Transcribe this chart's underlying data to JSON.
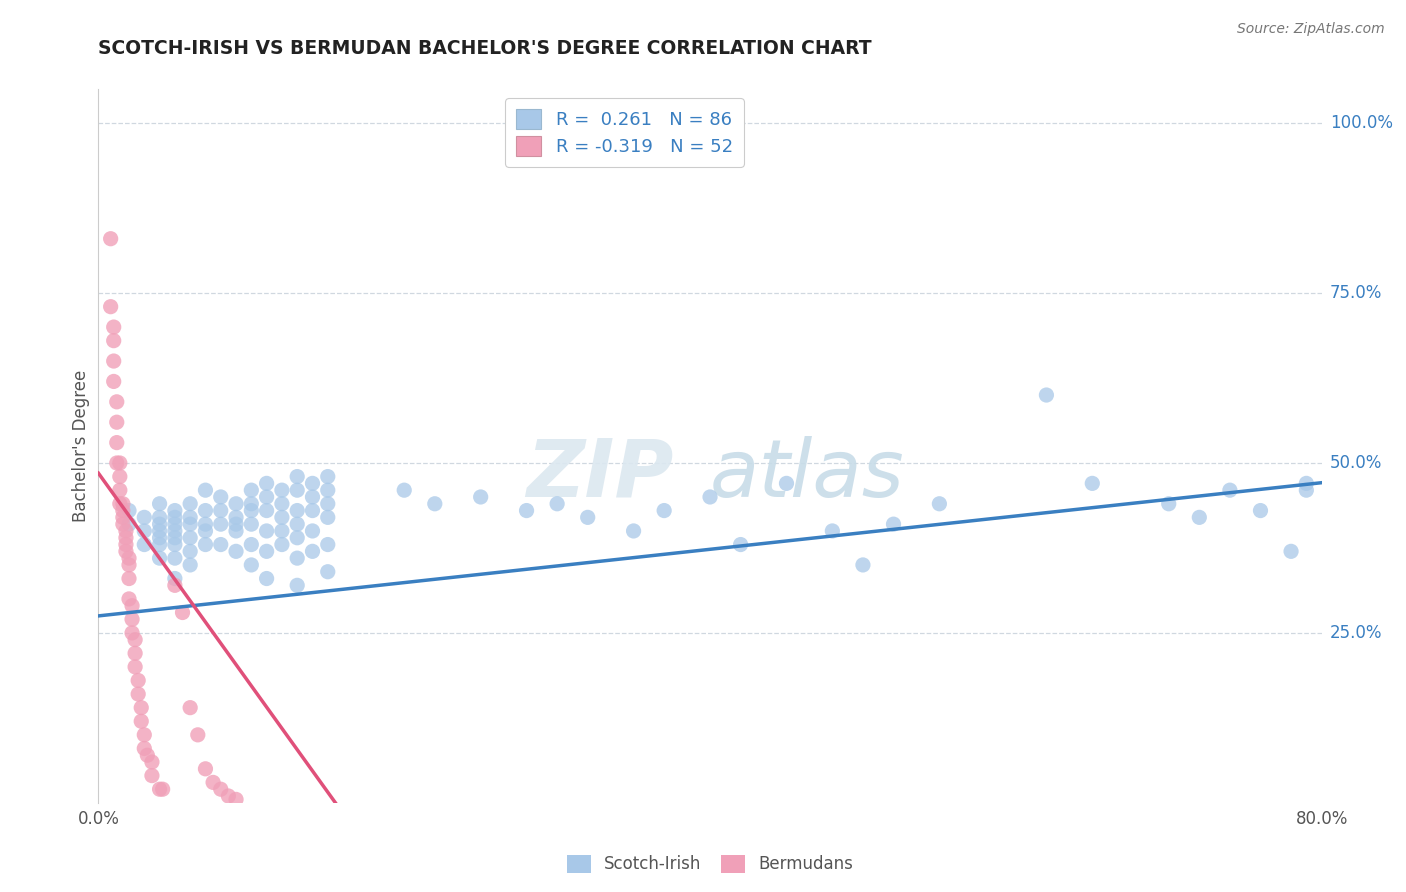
{
  "title": "SCOTCH-IRISH VS BERMUDAN BACHELOR'S DEGREE CORRELATION CHART",
  "source": "Source: ZipAtlas.com",
  "ylabel": "Bachelor's Degree",
  "legend_bottom": [
    "Scotch-Irish",
    "Bermudans"
  ],
  "blue_color": "#a8c8e8",
  "pink_color": "#f0a0b8",
  "blue_line_color": "#3a7fc1",
  "pink_line_color": "#e0507a",
  "watermark_color": "#dde8f0",
  "xlim": [
    0.0,
    0.8
  ],
  "ylim": [
    0.0,
    1.05
  ],
  "x_ticks": [
    0.0,
    0.8
  ],
  "x_tick_labels": [
    "0.0%",
    "80.0%"
  ],
  "y_ticks_right": [
    0.25,
    0.5,
    0.75,
    1.0
  ],
  "y_tick_labels_right": [
    "25.0%",
    "50.0%",
    "75.0%",
    "100.0%"
  ],
  "right_tick_color": "#3a7fc1",
  "grid_color": "#d0d8e0",
  "background_color": "#ffffff",
  "title_color": "#222222",
  "axis_label_color": "#555555",
  "source_color": "#777777",
  "legend_R_color": "#3a7fc1",
  "legend_text_color": "#333333",
  "blue_scatter_size": 120,
  "pink_scatter_size": 120,
  "blue_line_intercept": 0.275,
  "blue_line_slope_visual": 0.245,
  "pink_line_intercept": 0.485,
  "pink_line_x_end": 0.155,
  "si_points": [
    [
      0.02,
      0.43
    ],
    [
      0.02,
      0.41
    ],
    [
      0.03,
      0.42
    ],
    [
      0.03,
      0.4
    ],
    [
      0.03,
      0.38
    ],
    [
      0.04,
      0.44
    ],
    [
      0.04,
      0.42
    ],
    [
      0.04,
      0.41
    ],
    [
      0.04,
      0.4
    ],
    [
      0.04,
      0.39
    ],
    [
      0.04,
      0.38
    ],
    [
      0.04,
      0.36
    ],
    [
      0.05,
      0.43
    ],
    [
      0.05,
      0.42
    ],
    [
      0.05,
      0.41
    ],
    [
      0.05,
      0.4
    ],
    [
      0.05,
      0.39
    ],
    [
      0.05,
      0.38
    ],
    [
      0.05,
      0.36
    ],
    [
      0.05,
      0.33
    ],
    [
      0.06,
      0.44
    ],
    [
      0.06,
      0.42
    ],
    [
      0.06,
      0.41
    ],
    [
      0.06,
      0.39
    ],
    [
      0.06,
      0.37
    ],
    [
      0.06,
      0.35
    ],
    [
      0.07,
      0.46
    ],
    [
      0.07,
      0.43
    ],
    [
      0.07,
      0.41
    ],
    [
      0.07,
      0.4
    ],
    [
      0.07,
      0.38
    ],
    [
      0.08,
      0.45
    ],
    [
      0.08,
      0.43
    ],
    [
      0.08,
      0.41
    ],
    [
      0.08,
      0.38
    ],
    [
      0.09,
      0.44
    ],
    [
      0.09,
      0.42
    ],
    [
      0.09,
      0.41
    ],
    [
      0.09,
      0.4
    ],
    [
      0.09,
      0.37
    ],
    [
      0.1,
      0.46
    ],
    [
      0.1,
      0.44
    ],
    [
      0.1,
      0.43
    ],
    [
      0.1,
      0.41
    ],
    [
      0.1,
      0.38
    ],
    [
      0.1,
      0.35
    ],
    [
      0.11,
      0.47
    ],
    [
      0.11,
      0.45
    ],
    [
      0.11,
      0.43
    ],
    [
      0.11,
      0.4
    ],
    [
      0.11,
      0.37
    ],
    [
      0.11,
      0.33
    ],
    [
      0.12,
      0.46
    ],
    [
      0.12,
      0.44
    ],
    [
      0.12,
      0.42
    ],
    [
      0.12,
      0.4
    ],
    [
      0.12,
      0.38
    ],
    [
      0.13,
      0.48
    ],
    [
      0.13,
      0.46
    ],
    [
      0.13,
      0.43
    ],
    [
      0.13,
      0.41
    ],
    [
      0.13,
      0.39
    ],
    [
      0.13,
      0.36
    ],
    [
      0.13,
      0.32
    ],
    [
      0.14,
      0.47
    ],
    [
      0.14,
      0.45
    ],
    [
      0.14,
      0.43
    ],
    [
      0.14,
      0.4
    ],
    [
      0.14,
      0.37
    ],
    [
      0.15,
      0.48
    ],
    [
      0.15,
      0.46
    ],
    [
      0.15,
      0.44
    ],
    [
      0.15,
      0.42
    ],
    [
      0.15,
      0.38
    ],
    [
      0.15,
      0.34
    ],
    [
      0.2,
      0.46
    ],
    [
      0.22,
      0.44
    ],
    [
      0.25,
      0.45
    ],
    [
      0.28,
      0.43
    ],
    [
      0.3,
      0.44
    ],
    [
      0.32,
      0.42
    ],
    [
      0.35,
      0.4
    ],
    [
      0.37,
      0.43
    ],
    [
      0.4,
      0.45
    ],
    [
      0.42,
      0.38
    ],
    [
      0.45,
      0.47
    ],
    [
      0.48,
      0.4
    ],
    [
      0.5,
      0.35
    ],
    [
      0.52,
      0.41
    ],
    [
      0.55,
      0.44
    ],
    [
      0.62,
      0.6
    ],
    [
      0.65,
      0.47
    ],
    [
      0.7,
      0.44
    ],
    [
      0.72,
      0.42
    ],
    [
      0.74,
      0.46
    ],
    [
      0.76,
      0.43
    ],
    [
      0.78,
      0.37
    ],
    [
      0.79,
      0.46
    ],
    [
      0.79,
      0.47
    ]
  ],
  "bm_points": [
    [
      0.008,
      0.83
    ],
    [
      0.008,
      0.73
    ],
    [
      0.01,
      0.7
    ],
    [
      0.01,
      0.68
    ],
    [
      0.01,
      0.65
    ],
    [
      0.01,
      0.62
    ],
    [
      0.012,
      0.59
    ],
    [
      0.012,
      0.56
    ],
    [
      0.012,
      0.53
    ],
    [
      0.012,
      0.5
    ],
    [
      0.014,
      0.5
    ],
    [
      0.014,
      0.48
    ],
    [
      0.014,
      0.46
    ],
    [
      0.014,
      0.44
    ],
    [
      0.016,
      0.44
    ],
    [
      0.016,
      0.43
    ],
    [
      0.016,
      0.42
    ],
    [
      0.016,
      0.41
    ],
    [
      0.018,
      0.4
    ],
    [
      0.018,
      0.39
    ],
    [
      0.018,
      0.38
    ],
    [
      0.018,
      0.37
    ],
    [
      0.02,
      0.36
    ],
    [
      0.02,
      0.35
    ],
    [
      0.02,
      0.33
    ],
    [
      0.02,
      0.3
    ],
    [
      0.022,
      0.29
    ],
    [
      0.022,
      0.27
    ],
    [
      0.022,
      0.25
    ],
    [
      0.024,
      0.24
    ],
    [
      0.024,
      0.22
    ],
    [
      0.024,
      0.2
    ],
    [
      0.026,
      0.18
    ],
    [
      0.026,
      0.16
    ],
    [
      0.028,
      0.14
    ],
    [
      0.028,
      0.12
    ],
    [
      0.03,
      0.1
    ],
    [
      0.03,
      0.08
    ],
    [
      0.032,
      0.07
    ],
    [
      0.035,
      0.06
    ],
    [
      0.035,
      0.04
    ],
    [
      0.04,
      0.02
    ],
    [
      0.042,
      0.02
    ],
    [
      0.05,
      0.32
    ],
    [
      0.055,
      0.28
    ],
    [
      0.06,
      0.14
    ],
    [
      0.065,
      0.1
    ],
    [
      0.07,
      0.05
    ],
    [
      0.075,
      0.03
    ],
    [
      0.08,
      0.02
    ],
    [
      0.085,
      0.01
    ],
    [
      0.09,
      0.005
    ]
  ]
}
